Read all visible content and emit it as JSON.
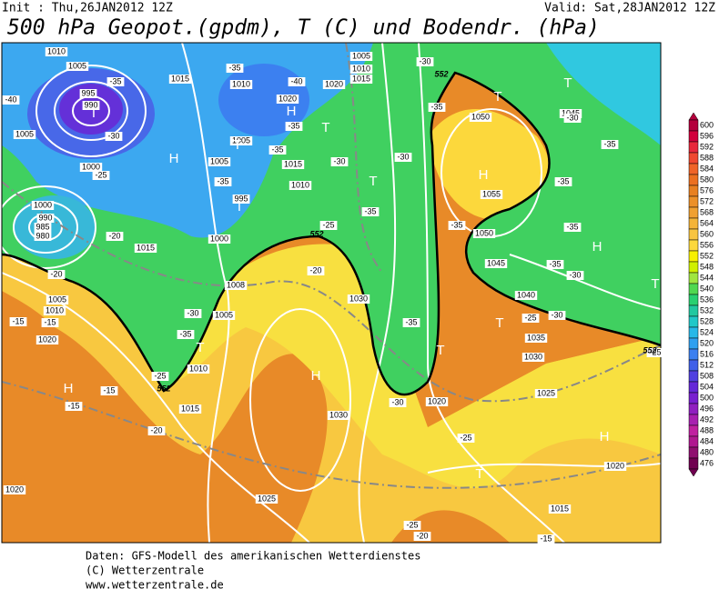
{
  "header": {
    "init": "Init : Thu,26JAN2012 12Z",
    "valid": "Valid: Sat,28JAN2012 12Z",
    "title": "500 hPa Geopot.(gpdm), T (C) und Bodendr. (hPa)"
  },
  "colorbar": {
    "ticks": [
      600,
      596,
      592,
      588,
      584,
      580,
      576,
      572,
      568,
      564,
      560,
      556,
      552,
      548,
      544,
      540,
      536,
      532,
      528,
      524,
      520,
      516,
      512,
      508,
      504,
      500,
      496,
      492,
      488,
      484,
      480,
      476
    ],
    "colors": [
      "#b4003c",
      "#d2003c",
      "#e8283c",
      "#f04830",
      "#f06428",
      "#ec7020",
      "#e88020",
      "#ec9028",
      "#f0a030",
      "#f4b438",
      "#f8c440",
      "#fcd83c",
      "#f8f000",
      "#d0f000",
      "#a0e640",
      "#50d850",
      "#28d070",
      "#20c8a0",
      "#20c8c8",
      "#28b8e8",
      "#30a0f0",
      "#3c80f0",
      "#4060e8",
      "#5040e0",
      "#6428d8",
      "#7820d0",
      "#9020c0",
      "#a820b0",
      "#c020a0",
      "#b01890",
      "#901070",
      "#700050"
    ]
  },
  "map": {
    "labels": [
      "1010",
      "1005",
      "995",
      "990",
      "1005",
      "1000",
      "1000",
      "990",
      "985",
      "980",
      "1015",
      "1005",
      "1010",
      "1020",
      "1015",
      "1010",
      "1020",
      "1020",
      "1005",
      "1010",
      "1015",
      "1005",
      "1005",
      "1015",
      "1010",
      "995",
      "1000",
      "1008",
      "1005",
      "1010",
      "1015",
      "1030",
      "1030",
      "1020",
      "1025",
      "1020",
      "1050",
      "1055",
      "1045",
      "1050",
      "1045",
      "1040",
      "1035",
      "1030",
      "1025",
      "1020",
      "1015",
      "-35",
      "-35",
      "-30",
      "-25",
      "-20",
      "-20",
      "-15",
      "-15",
      "-15",
      "-15",
      "-20",
      "-25",
      "-30",
      "-35",
      "-20",
      "-25",
      "-35",
      "-30",
      "-35",
      "-40",
      "-30",
      "-35",
      "-30",
      "-35",
      "-35",
      "-30",
      "-35",
      "-30",
      "-35",
      "-35",
      "-35",
      "-35",
      "-30",
      "-30",
      "-25",
      "-25",
      "-20",
      "-25",
      "-15",
      "-25",
      "-40",
      "-35"
    ],
    "centers": [
      "T",
      "H",
      "H",
      "T",
      "T",
      "T",
      "T",
      "T",
      "T",
      "H",
      "H",
      "T",
      "T",
      "T",
      "H",
      "H",
      "H",
      "T",
      "T"
    ],
    "isoline": [
      "552",
      "552",
      "552",
      "552"
    ]
  },
  "footer": {
    "lines": [
      "Daten: GFS-Modell des amerikanischen Wetterdienstes",
      "(C) Wetterzentrale",
      "www.wetterzentrale.de"
    ]
  }
}
